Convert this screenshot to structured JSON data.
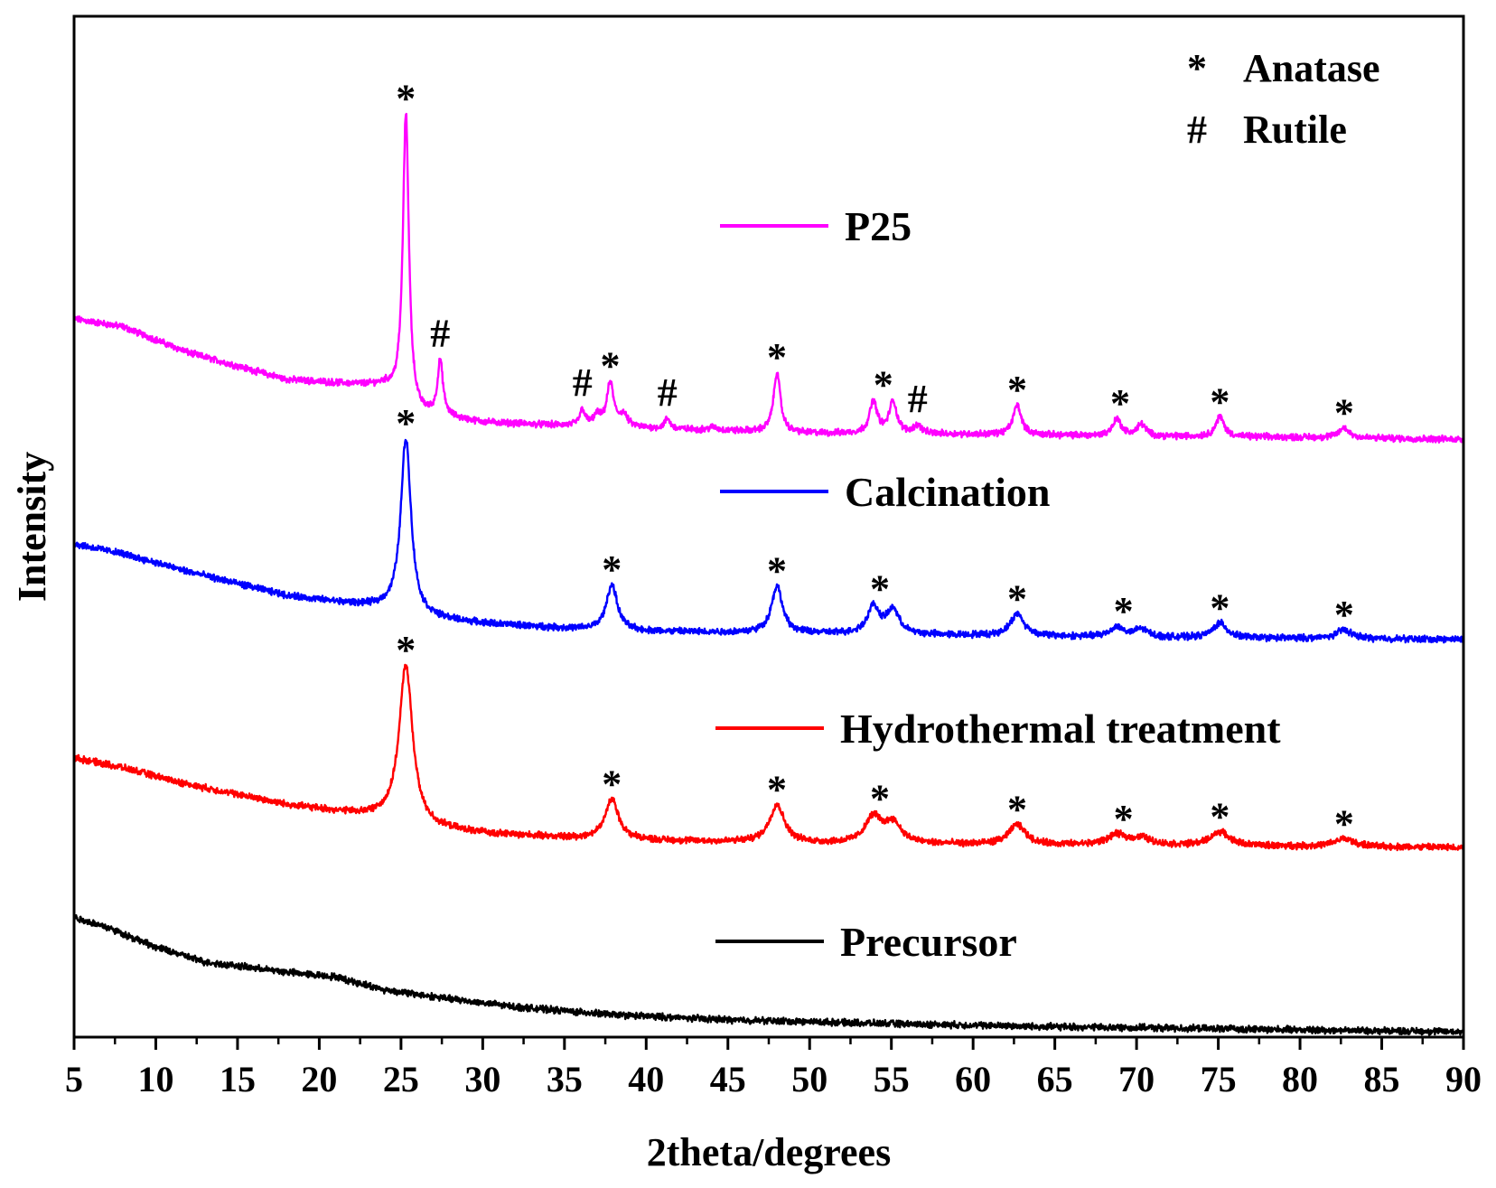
{
  "chart_data": {
    "type": "line",
    "xlabel": "2theta/degrees",
    "ylabel": "Intensity",
    "xlim": [
      5,
      90
    ],
    "ylim": [
      0,
      1000
    ],
    "x_ticks": [
      "5",
      "10",
      "15",
      "20",
      "25",
      "30",
      "35",
      "40",
      "45",
      "50",
      "55",
      "60",
      "65",
      "70",
      "75",
      "80",
      "85",
      "90"
    ],
    "legend_position": "center-right (inline, next to each curve)",
    "phase_key": [
      {
        "symbol": "*",
        "label": "Anatase"
      },
      {
        "symbol": "#",
        "label": "Rutile"
      }
    ],
    "series": [
      {
        "name": "P25",
        "color": "#ff00ff",
        "baseline": [
          [
            5,
            716
          ],
          [
            8,
            708
          ],
          [
            12,
            682
          ],
          [
            18,
            655
          ],
          [
            24,
            648
          ],
          [
            26,
            620
          ],
          [
            30,
            612
          ],
          [
            36,
            608
          ],
          [
            40,
            606
          ],
          [
            50,
            601
          ],
          [
            60,
            600
          ],
          [
            70,
            598
          ],
          [
            80,
            597
          ],
          [
            90,
            595
          ]
        ],
        "peaks": [
          {
            "x": 25.3,
            "h": 292,
            "w": 0.22
          },
          {
            "x": 27.4,
            "h": 55,
            "w": 0.2
          },
          {
            "x": 36.1,
            "h": 16,
            "w": 0.2
          },
          {
            "x": 37.0,
            "h": 10,
            "w": 0.25
          },
          {
            "x": 37.8,
            "h": 44,
            "w": 0.25
          },
          {
            "x": 38.6,
            "h": 12,
            "w": 0.3
          },
          {
            "x": 41.3,
            "h": 10,
            "w": 0.2
          },
          {
            "x": 44.1,
            "h": 3,
            "w": 0.3
          },
          {
            "x": 48.0,
            "h": 60,
            "w": 0.25
          },
          {
            "x": 53.9,
            "h": 32,
            "w": 0.28
          },
          {
            "x": 55.1,
            "h": 32,
            "w": 0.28
          },
          {
            "x": 56.6,
            "h": 8,
            "w": 0.3
          },
          {
            "x": 62.7,
            "h": 30,
            "w": 0.3
          },
          {
            "x": 68.8,
            "h": 17,
            "w": 0.32
          },
          {
            "x": 70.3,
            "h": 12,
            "w": 0.32
          },
          {
            "x": 75.1,
            "h": 20,
            "w": 0.32
          },
          {
            "x": 82.7,
            "h": 10,
            "w": 0.38
          }
        ],
        "markers": [
          {
            "x": 25.3,
            "symbol": "*"
          },
          {
            "x": 27.4,
            "symbol": "#"
          },
          {
            "x": 36.1,
            "symbol": "#"
          },
          {
            "x": 37.8,
            "symbol": "*"
          },
          {
            "x": 41.3,
            "symbol": "#"
          },
          {
            "x": 48.0,
            "symbol": "*"
          },
          {
            "x": 54.5,
            "symbol": "*"
          },
          {
            "x": 56.6,
            "symbol": "#"
          },
          {
            "x": 62.7,
            "symbol": "*"
          },
          {
            "x": 69.0,
            "symbol": "*"
          },
          {
            "x": 75.1,
            "symbol": "*"
          },
          {
            "x": 82.7,
            "symbol": "*"
          }
        ]
      },
      {
        "name": "Calcination",
        "color": "#0000ff",
        "baseline": [
          [
            5,
            490
          ],
          [
            8,
            480
          ],
          [
            12,
            462
          ],
          [
            18,
            438
          ],
          [
            24,
            425
          ],
          [
            26,
            416
          ],
          [
            30,
            410
          ],
          [
            36,
            404
          ],
          [
            40,
            402
          ],
          [
            50,
            400
          ],
          [
            60,
            398
          ],
          [
            70,
            396
          ],
          [
            80,
            395
          ],
          [
            90,
            394
          ]
        ],
        "peaks": [
          {
            "x": 25.3,
            "h": 177,
            "w": 0.38
          },
          {
            "x": 37.9,
            "h": 46,
            "w": 0.4
          },
          {
            "x": 48.0,
            "h": 47,
            "w": 0.4
          },
          {
            "x": 53.9,
            "h": 27,
            "w": 0.45
          },
          {
            "x": 55.1,
            "h": 24,
            "w": 0.45
          },
          {
            "x": 62.7,
            "h": 22,
            "w": 0.5
          },
          {
            "x": 68.8,
            "h": 10,
            "w": 0.5
          },
          {
            "x": 70.3,
            "h": 8,
            "w": 0.5
          },
          {
            "x": 75.1,
            "h": 15,
            "w": 0.5
          },
          {
            "x": 82.7,
            "h": 9,
            "w": 0.55
          }
        ],
        "markers": [
          {
            "x": 25.3,
            "symbol": "*"
          },
          {
            "x": 37.9,
            "symbol": "*"
          },
          {
            "x": 48.0,
            "symbol": "*"
          },
          {
            "x": 54.3,
            "symbol": "*"
          },
          {
            "x": 62.7,
            "symbol": "*"
          },
          {
            "x": 69.2,
            "symbol": "*"
          },
          {
            "x": 75.1,
            "symbol": "*"
          },
          {
            "x": 82.7,
            "symbol": "*"
          }
        ]
      },
      {
        "name": "Hydrothermal treatment",
        "color": "#ff0000",
        "baseline": [
          [
            5,
            275
          ],
          [
            8,
            265
          ],
          [
            12,
            248
          ],
          [
            18,
            228
          ],
          [
            24,
            214
          ],
          [
            26,
            205
          ],
          [
            30,
            199
          ],
          [
            36,
            194
          ],
          [
            40,
            192
          ],
          [
            50,
            189
          ],
          [
            60,
            188
          ],
          [
            70,
            187
          ],
          [
            80,
            186
          ],
          [
            90,
            185
          ]
        ],
        "peaks": [
          {
            "x": 25.3,
            "h": 160,
            "w": 0.5
          },
          {
            "x": 37.9,
            "h": 40,
            "w": 0.5
          },
          {
            "x": 48.0,
            "h": 38,
            "w": 0.55
          },
          {
            "x": 53.9,
            "h": 26,
            "w": 0.6
          },
          {
            "x": 55.1,
            "h": 20,
            "w": 0.6
          },
          {
            "x": 62.7,
            "h": 20,
            "w": 0.6
          },
          {
            "x": 68.8,
            "h": 10,
            "w": 0.7
          },
          {
            "x": 70.3,
            "h": 7,
            "w": 0.7
          },
          {
            "x": 75.1,
            "h": 14,
            "w": 0.7
          },
          {
            "x": 82.7,
            "h": 8,
            "w": 0.7
          }
        ],
        "markers": [
          {
            "x": 25.3,
            "symbol": "*"
          },
          {
            "x": 37.9,
            "symbol": "*"
          },
          {
            "x": 48.0,
            "symbol": "*"
          },
          {
            "x": 54.3,
            "symbol": "*"
          },
          {
            "x": 62.7,
            "symbol": "*"
          },
          {
            "x": 69.2,
            "symbol": "*"
          },
          {
            "x": 75.1,
            "symbol": "*"
          },
          {
            "x": 82.7,
            "symbol": "*"
          }
        ]
      },
      {
        "name": "Precursor",
        "color": "#000000",
        "baseline": [
          [
            5,
            115
          ],
          [
            7,
            105
          ],
          [
            10,
            85
          ],
          [
            13,
            70
          ],
          [
            18,
            60
          ],
          [
            21,
            55
          ],
          [
            24,
            42
          ],
          [
            28,
            33
          ],
          [
            32,
            25
          ],
          [
            38,
            17
          ],
          [
            45,
            12
          ],
          [
            55,
            8
          ],
          [
            65,
            5
          ],
          [
            75,
            3
          ],
          [
            90,
            0
          ]
        ],
        "peaks": [],
        "markers": []
      }
    ]
  }
}
